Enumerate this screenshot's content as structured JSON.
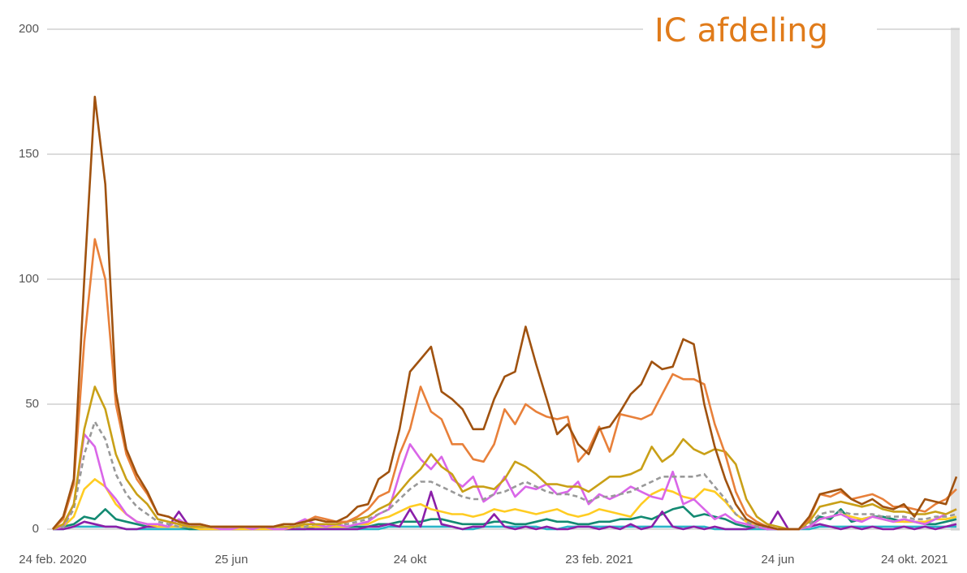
{
  "chart_data": {
    "type": "line",
    "title": "IC afdeling",
    "categories": [
      "24 feb. 2020",
      null,
      null,
      null,
      null,
      null,
      null,
      null,
      null,
      null,
      null,
      null,
      null,
      null,
      null,
      null,
      null,
      "25 jun",
      null,
      null,
      null,
      null,
      null,
      null,
      null,
      null,
      null,
      null,
      null,
      null,
      null,
      null,
      null,
      null,
      "24 okt",
      null,
      null,
      null,
      null,
      null,
      null,
      null,
      null,
      null,
      null,
      null,
      null,
      null,
      null,
      null,
      null,
      null,
      "23 feb. 2021",
      null,
      null,
      null,
      null,
      null,
      null,
      null,
      null,
      null,
      null,
      null,
      null,
      null,
      null,
      null,
      null,
      "24 jun",
      null,
      null,
      null,
      null,
      null,
      null,
      null,
      null,
      null,
      null,
      null,
      null,
      "24 okt. 2021",
      null,
      null,
      null,
      null
    ],
    "ylim": [
      0,
      200
    ],
    "yticks": [
      0,
      50,
      100,
      150,
      200
    ],
    "grid": true,
    "series": [
      {
        "color": "#2ab5c8",
        "values": [
          0,
          0,
          1,
          1,
          1,
          1,
          1,
          0,
          0,
          0,
          0,
          0,
          0,
          0,
          0,
          0,
          0,
          0,
          0,
          0,
          0,
          0,
          0,
          0,
          0,
          0,
          0,
          0,
          0,
          0,
          0,
          0,
          1,
          1,
          1,
          1,
          1,
          1,
          1,
          0,
          0,
          1,
          1,
          1,
          1,
          1,
          1,
          0,
          0,
          1,
          1,
          1,
          1,
          1,
          1,
          1,
          1,
          1,
          1,
          1,
          1,
          1,
          1,
          0,
          0,
          0,
          0,
          0,
          0,
          0,
          0,
          0,
          0,
          1,
          1,
          1,
          1,
          1,
          1,
          1,
          1,
          1,
          1,
          1,
          1,
          1,
          1
        ]
      },
      {
        "color": "#138a72",
        "values": [
          0,
          1,
          2,
          5,
          4,
          8,
          4,
          3,
          2,
          1,
          1,
          1,
          1,
          0,
          0,
          0,
          0,
          0,
          0,
          0,
          0,
          0,
          0,
          0,
          0,
          1,
          1,
          1,
          1,
          1,
          1,
          2,
          2,
          3,
          3,
          3,
          4,
          4,
          3,
          2,
          2,
          2,
          3,
          3,
          2,
          2,
          3,
          4,
          3,
          3,
          2,
          2,
          3,
          3,
          4,
          4,
          5,
          4,
          6,
          8,
          9,
          5,
          6,
          5,
          4,
          2,
          1,
          1,
          0,
          0,
          0,
          0,
          1,
          5,
          4,
          8,
          3,
          4,
          5,
          5,
          4,
          3,
          3,
          2,
          2,
          3,
          4
        ]
      },
      {
        "color": "#8b1fa9",
        "values": [
          0,
          0,
          1,
          3,
          2,
          1,
          1,
          0,
          0,
          1,
          1,
          1,
          7,
          1,
          0,
          0,
          0,
          0,
          0,
          0,
          0,
          0,
          0,
          0,
          0,
          0,
          0,
          0,
          0,
          0,
          1,
          1,
          2,
          1,
          8,
          1,
          15,
          2,
          1,
          0,
          1,
          1,
          6,
          1,
          0,
          1,
          0,
          1,
          0,
          0,
          1,
          1,
          0,
          1,
          0,
          2,
          0,
          1,
          7,
          1,
          0,
          1,
          0,
          1,
          0,
          0,
          0,
          1,
          0,
          7,
          0,
          0,
          1,
          2,
          1,
          0,
          1,
          0,
          1,
          0,
          0,
          1,
          0,
          1,
          0,
          1,
          2
        ]
      },
      {
        "color": "#ffcc22",
        "values": [
          0,
          1,
          5,
          16,
          20,
          17,
          10,
          6,
          3,
          2,
          1,
          1,
          1,
          1,
          0,
          0,
          0,
          0,
          0,
          0,
          0,
          0,
          0,
          1,
          1,
          1,
          1,
          1,
          1,
          2,
          2,
          4,
          5,
          7,
          9,
          10,
          8,
          7,
          6,
          6,
          5,
          6,
          8,
          7,
          8,
          7,
          6,
          7,
          8,
          6,
          5,
          6,
          8,
          7,
          6,
          5,
          10,
          14,
          16,
          15,
          13,
          12,
          16,
          15,
          11,
          6,
          3,
          1,
          1,
          0,
          0,
          0,
          1,
          4,
          5,
          6,
          5,
          4,
          5,
          4,
          3,
          3,
          3,
          3,
          4,
          4,
          5
        ]
      },
      {
        "color": "#d966e8",
        "values": [
          0,
          1,
          10,
          38,
          33,
          17,
          12,
          6,
          3,
          2,
          2,
          1,
          4,
          1,
          2,
          1,
          0,
          0,
          1,
          0,
          1,
          0,
          0,
          2,
          4,
          2,
          1,
          2,
          1,
          2,
          3,
          6,
          8,
          22,
          34,
          28,
          24,
          29,
          20,
          17,
          21,
          11,
          14,
          21,
          13,
          17,
          16,
          18,
          14,
          15,
          19,
          10,
          14,
          12,
          14,
          17,
          15,
          13,
          12,
          23,
          10,
          12,
          8,
          4,
          6,
          3,
          2,
          1,
          0,
          0,
          0,
          0,
          1,
          4,
          5,
          6,
          4,
          3,
          5,
          4,
          3,
          4,
          3,
          2,
          4,
          6,
          8
        ]
      },
      {
        "color": "#999999",
        "dashed": true,
        "values": [
          0,
          1,
          8,
          30,
          43,
          36,
          22,
          14,
          9,
          6,
          3,
          2,
          1,
          1,
          1,
          1,
          1,
          1,
          1,
          1,
          1,
          1,
          1,
          1,
          1,
          2,
          2,
          2,
          2,
          3,
          4,
          6,
          8,
          12,
          16,
          19,
          19,
          17,
          15,
          13,
          12,
          12,
          14,
          15,
          17,
          19,
          17,
          15,
          14,
          14,
          13,
          11,
          13,
          13,
          14,
          15,
          17,
          19,
          21,
          21,
          21,
          21,
          22,
          17,
          12,
          6,
          3,
          1,
          1,
          0,
          0,
          0,
          2,
          6,
          7,
          7,
          6,
          6,
          6,
          5,
          5,
          5,
          4,
          4,
          5,
          5,
          6
        ]
      },
      {
        "color": "#c9a017",
        "values": [
          0,
          2,
          10,
          40,
          57,
          48,
          30,
          20,
          14,
          10,
          4,
          3,
          2,
          1,
          1,
          1,
          1,
          1,
          1,
          1,
          1,
          1,
          1,
          1,
          2,
          2,
          2,
          2,
          3,
          4,
          5,
          8,
          10,
          15,
          20,
          24,
          30,
          25,
          22,
          15,
          17,
          17,
          16,
          20,
          27,
          25,
          22,
          18,
          18,
          17,
          17,
          15,
          18,
          21,
          21,
          22,
          24,
          33,
          27,
          30,
          36,
          32,
          30,
          32,
          31,
          26,
          12,
          5,
          2,
          1,
          0,
          0,
          3,
          9,
          10,
          11,
          10,
          9,
          10,
          8,
          7,
          7,
          6,
          6,
          7,
          6,
          8
        ]
      },
      {
        "color": "#e8803a",
        "values": [
          0,
          4,
          18,
          75,
          116,
          100,
          50,
          30,
          20,
          14,
          6,
          5,
          3,
          2,
          2,
          1,
          1,
          1,
          1,
          1,
          1,
          1,
          2,
          2,
          3,
          5,
          4,
          3,
          3,
          5,
          8,
          13,
          15,
          30,
          40,
          57,
          47,
          44,
          34,
          34,
          28,
          27,
          34,
          48,
          42,
          50,
          47,
          45,
          44,
          45,
          27,
          32,
          41,
          31,
          46,
          45,
          44,
          46,
          54,
          62,
          60,
          60,
          58,
          42,
          30,
          15,
          6,
          3,
          1,
          0,
          0,
          0,
          4,
          14,
          13,
          15,
          12,
          13,
          14,
          12,
          9,
          9,
          8,
          7,
          10,
          12,
          16
        ]
      },
      {
        "color": "#a0520f",
        "values": [
          0,
          5,
          20,
          100,
          173,
          138,
          55,
          32,
          22,
          15,
          6,
          5,
          3,
          2,
          2,
          1,
          1,
          1,
          1,
          1,
          1,
          1,
          2,
          2,
          3,
          4,
          3,
          3,
          5,
          9,
          10,
          20,
          23,
          40,
          63,
          68,
          73,
          55,
          52,
          48,
          40,
          40,
          52,
          61,
          63,
          81,
          66,
          52,
          38,
          42,
          34,
          30,
          40,
          41,
          47,
          54,
          58,
          67,
          64,
          65,
          76,
          74,
          50,
          33,
          20,
          10,
          4,
          2,
          1,
          0,
          0,
          0,
          5,
          14,
          15,
          16,
          12,
          10,
          12,
          9,
          8,
          10,
          5,
          12,
          11,
          10,
          21
        ]
      }
    ]
  }
}
